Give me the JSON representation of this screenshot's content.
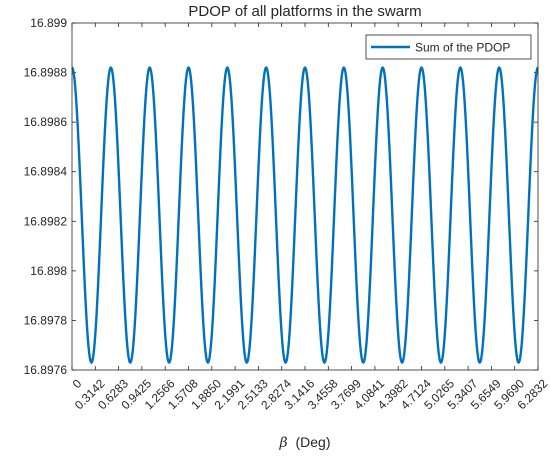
{
  "chart_data": {
    "type": "line",
    "title": "PDOP of all platforms in the swarm",
    "xlabel_symbol": "β",
    "xlabel_unit": "(Deg)",
    "ylabel": "",
    "xlim": [
      0,
      6.2832
    ],
    "ylim": [
      16.8976,
      16.899
    ],
    "x_ticks": [
      "0",
      "0.3142",
      "0.6283",
      "0.9425",
      "1.2566",
      "1.5708",
      "1.8850",
      "2.1991",
      "2.5133",
      "2.8274",
      "3.1416",
      "3.4558",
      "3.7699",
      "4.0841",
      "4.3982",
      "4.7124",
      "5.0265",
      "5.3407",
      "5.6549",
      "5.9690",
      "6.2832"
    ],
    "x_tick_values": [
      0,
      0.3142,
      0.6283,
      0.9425,
      1.2566,
      1.5708,
      1.885,
      2.1991,
      2.5133,
      2.8274,
      3.1416,
      3.4558,
      3.7699,
      4.0841,
      4.3982,
      4.7124,
      5.0265,
      5.3407,
      5.6549,
      5.969,
      6.2832
    ],
    "y_ticks": [
      "16.8976",
      "16.8978",
      "16.898",
      "16.8982",
      "16.8984",
      "16.8986",
      "16.8988",
      "16.899"
    ],
    "y_tick_values": [
      16.8976,
      16.8978,
      16.898,
      16.8982,
      16.8984,
      16.8986,
      16.8988,
      16.899
    ],
    "grid": false,
    "legend_position": "top-right",
    "series": [
      {
        "name": "Sum of the PDOP",
        "color": "#0072BD",
        "function": "cos",
        "max": 16.89882,
        "min": 16.89763,
        "cycles": 12
      }
    ]
  }
}
